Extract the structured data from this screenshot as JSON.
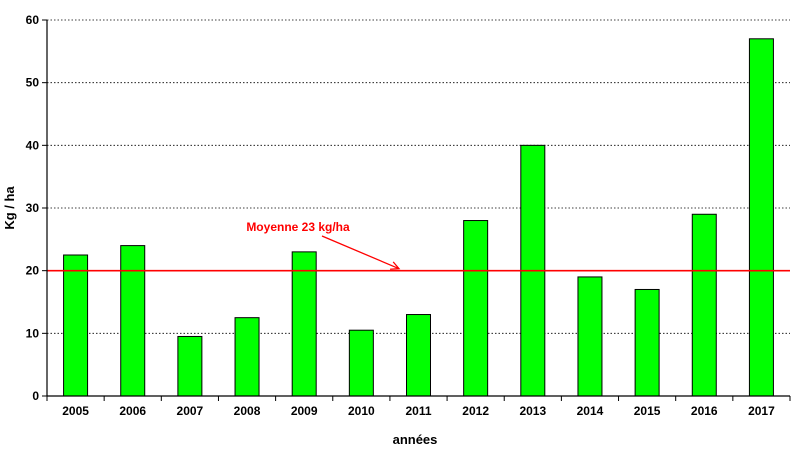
{
  "chart_data": {
    "type": "bar",
    "title": "",
    "xlabel": "années",
    "ylabel": "Kg / ha",
    "ylim": [
      0,
      60
    ],
    "yticks": [
      0,
      10,
      20,
      30,
      40,
      50,
      60
    ],
    "grid": true,
    "categories": [
      "2005",
      "2006",
      "2007",
      "2008",
      "2009",
      "2010",
      "2011",
      "2012",
      "2013",
      "2014",
      "2015",
      "2016",
      "2017"
    ],
    "values": [
      22.5,
      24,
      9.5,
      12.5,
      23,
      10.5,
      13,
      28,
      40,
      19,
      17,
      29,
      57
    ],
    "bar_color": "#00ff00",
    "reference_line": {
      "value": 20,
      "color": "#ff0000"
    },
    "annotation": {
      "text": "Moyenne 23 kg/ha",
      "color": "#ff0000"
    }
  }
}
